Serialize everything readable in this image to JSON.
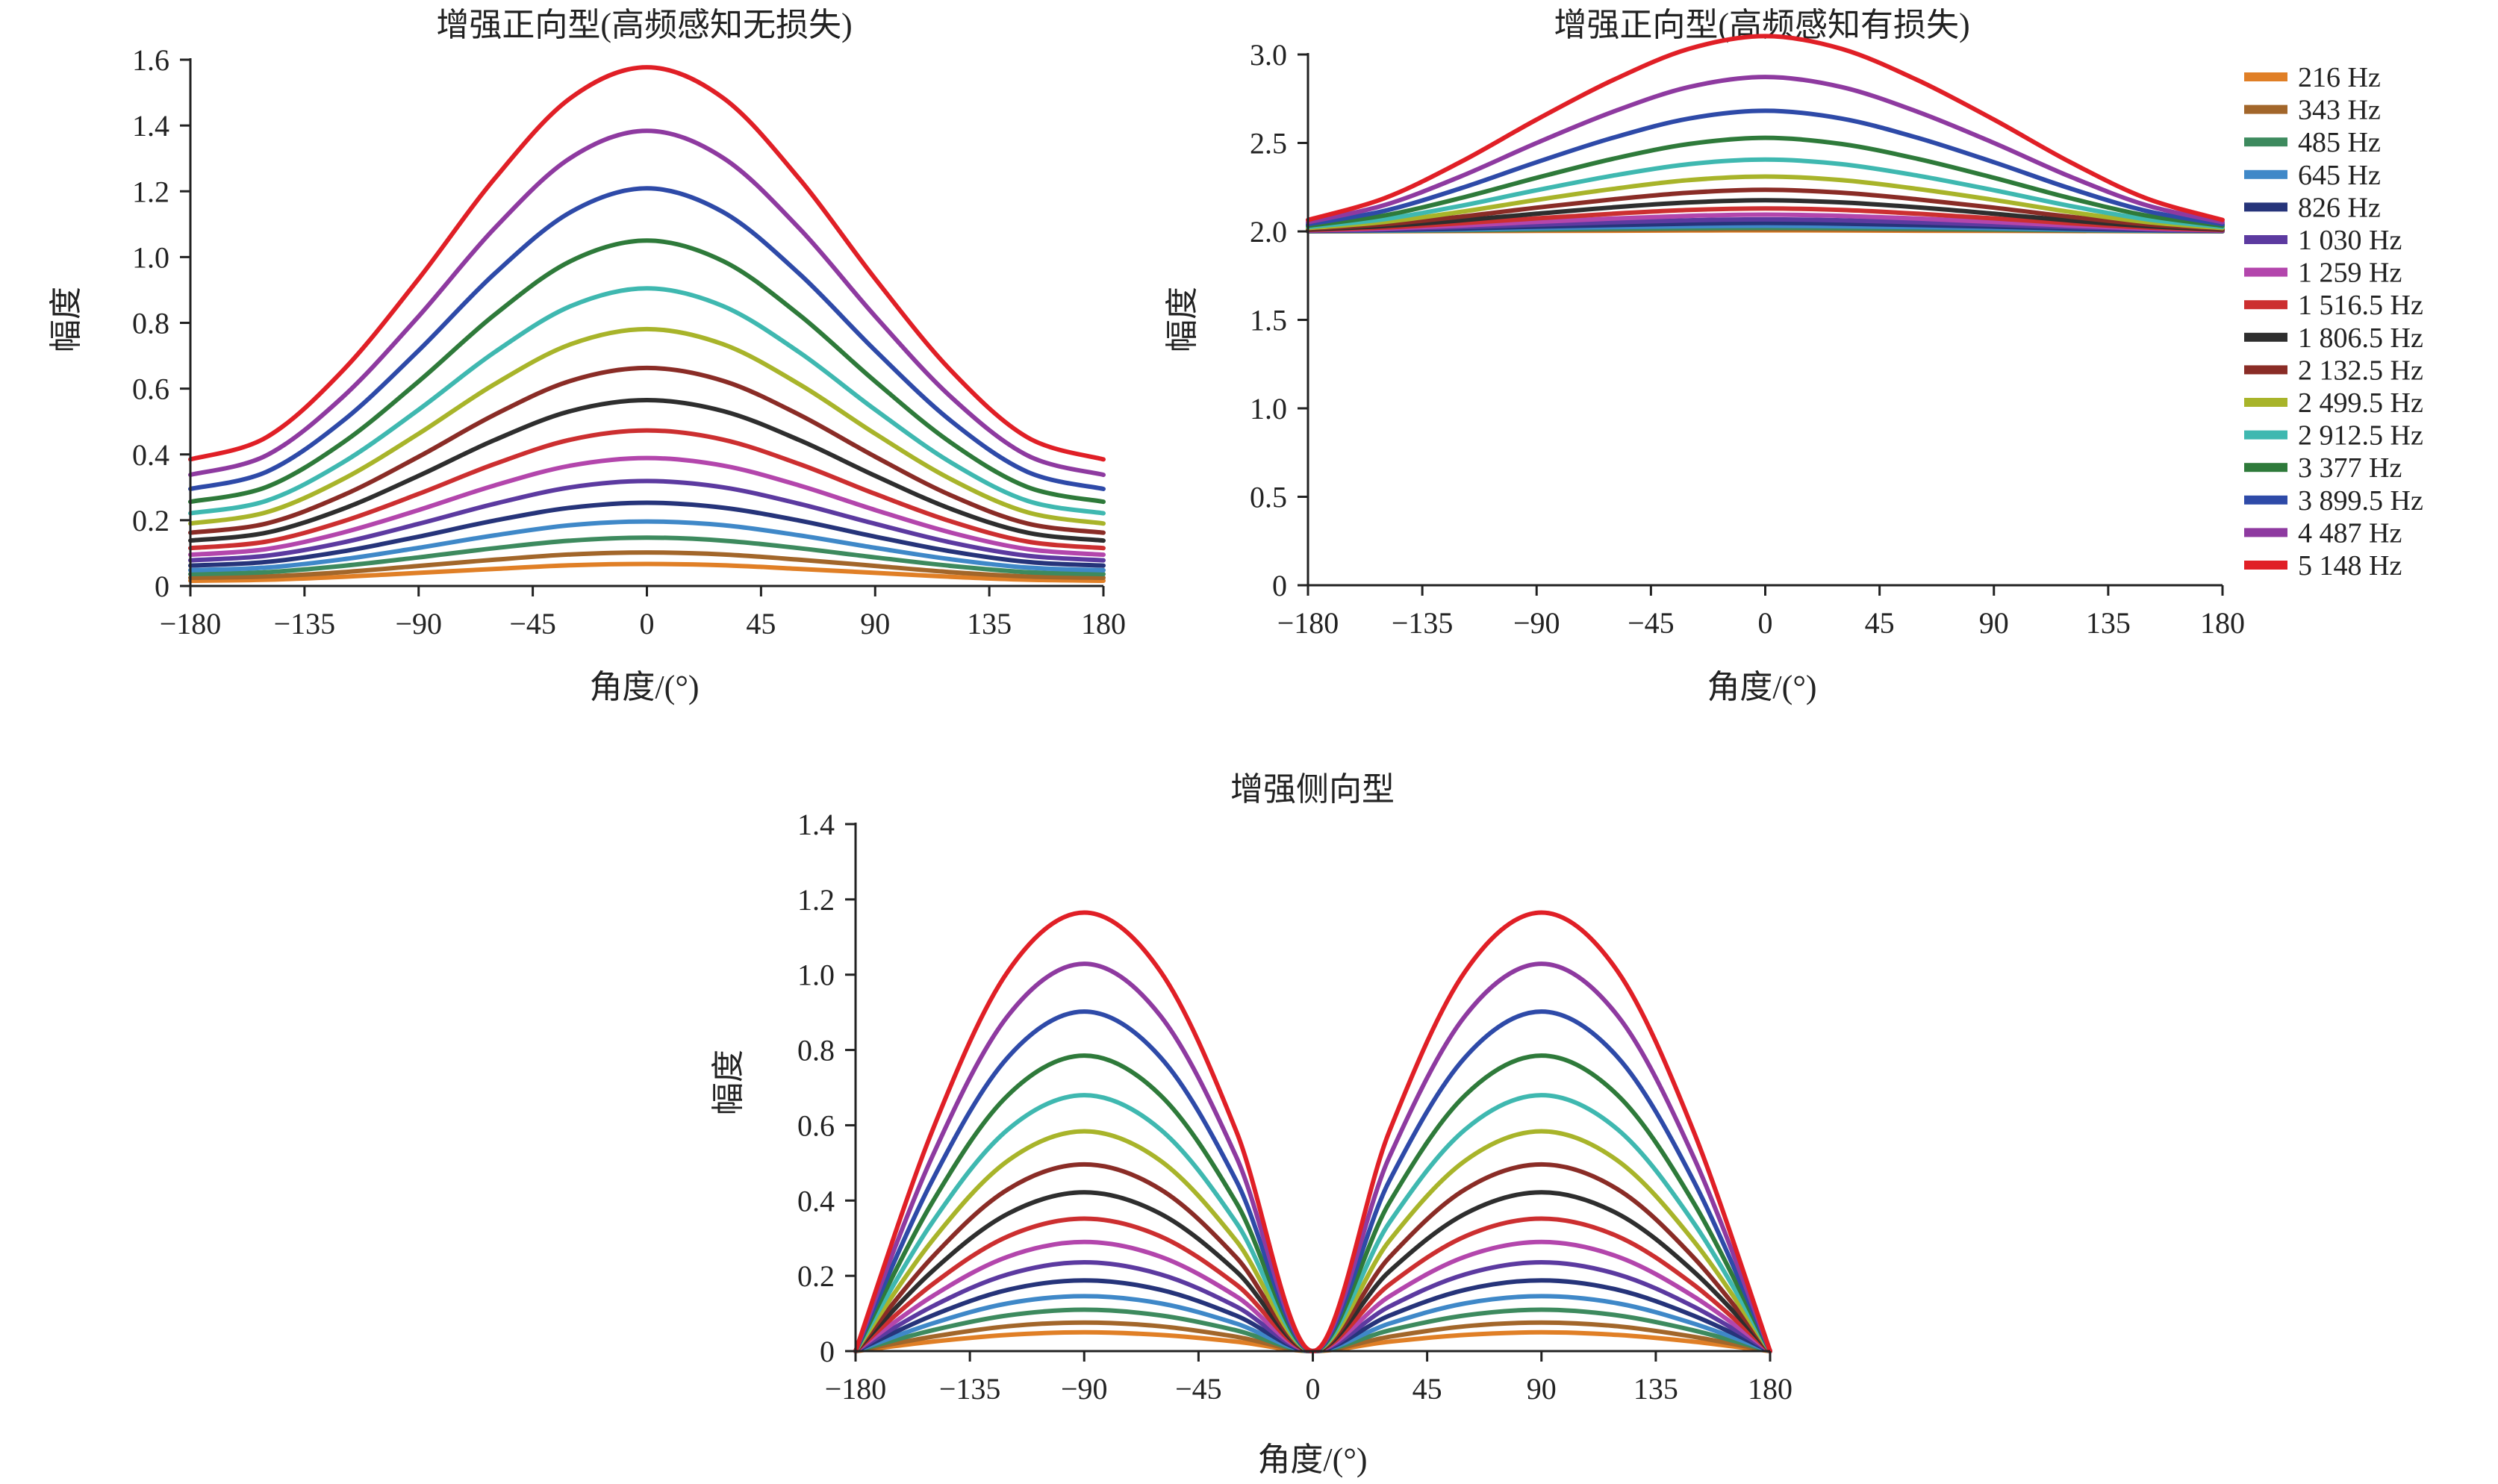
{
  "figure": {
    "legend_labels": [
      "216 Hz",
      "343 Hz",
      "485 Hz",
      "645 Hz",
      "826 Hz",
      "1 030 Hz",
      "1 259 Hz",
      "1 516.5 Hz",
      "1 806.5 Hz",
      "2 132.5 Hz",
      "2 499.5 Hz",
      "2 912.5 Hz",
      "3 377 Hz",
      "3 899.5 Hz",
      "4 487 Hz",
      "5 148 Hz"
    ],
    "series_colors": [
      "#e07f26",
      "#a2662a",
      "#3d8a5e",
      "#3f88c8",
      "#26347a",
      "#5c3aa0",
      "#b346ac",
      "#cc2f30",
      "#2e2e2e",
      "#8a2c26",
      "#a8b42a",
      "#3fb8b0",
      "#2e7a3a",
      "#2e4aa8",
      "#8e3aa0",
      "#e01f26"
    ],
    "legend_position": "right"
  },
  "chart_data": [
    {
      "id": "forward_lossless",
      "type": "line",
      "title": "增强正向型(高频感知无损失)",
      "xlabel": "角度/(°)",
      "ylabel": "幅度",
      "xlim": [
        -180,
        180
      ],
      "ylim": [
        0,
        1.6
      ],
      "xticks": [
        -180,
        -135,
        -90,
        -45,
        0,
        45,
        90,
        135,
        180
      ],
      "xtick_labels": [
        "−180",
        "−135",
        "−90",
        "−45",
        "0",
        "45",
        "90",
        "135",
        "180"
      ],
      "yticks": [
        0,
        0.2,
        0.4,
        0.6,
        0.8,
        1.0,
        1.2,
        1.4,
        1.6
      ],
      "ytick_labels": [
        "0",
        "0.2",
        "0.4",
        "0.6",
        "0.8",
        "1.0",
        "1.2",
        "1.4",
        "1.6"
      ],
      "grid": false,
      "x": [
        -180,
        -150,
        -120,
        -90,
        -60,
        -30,
        0,
        30,
        60,
        90,
        120,
        150,
        180
      ],
      "series": [
        {
          "name": "216 Hz",
          "values": [
            0.016,
            0.019,
            0.028,
            0.04,
            0.052,
            0.063,
            0.067,
            0.063,
            0.052,
            0.04,
            0.028,
            0.019,
            0.016
          ]
        },
        {
          "name": "343 Hz",
          "values": [
            0.025,
            0.029,
            0.042,
            0.061,
            0.08,
            0.096,
            0.102,
            0.096,
            0.08,
            0.061,
            0.042,
            0.029,
            0.025
          ]
        },
        {
          "name": "485 Hz",
          "values": [
            0.036,
            0.042,
            0.061,
            0.087,
            0.115,
            0.138,
            0.147,
            0.138,
            0.115,
            0.087,
            0.061,
            0.042,
            0.036
          ]
        },
        {
          "name": "645 Hz",
          "values": [
            0.048,
            0.056,
            0.081,
            0.116,
            0.154,
            0.185,
            0.196,
            0.185,
            0.154,
            0.116,
            0.081,
            0.056,
            0.048
          ]
        },
        {
          "name": "826 Hz",
          "values": [
            0.062,
            0.073,
            0.105,
            0.15,
            0.199,
            0.238,
            0.253,
            0.238,
            0.199,
            0.15,
            0.105,
            0.073,
            0.062
          ]
        },
        {
          "name": "1 030 Hz",
          "values": [
            0.078,
            0.092,
            0.132,
            0.189,
            0.25,
            0.3,
            0.319,
            0.3,
            0.25,
            0.189,
            0.132,
            0.092,
            0.078
          ]
        },
        {
          "name": "1 259 Hz",
          "values": [
            0.095,
            0.112,
            0.162,
            0.231,
            0.306,
            0.366,
            0.389,
            0.366,
            0.306,
            0.231,
            0.162,
            0.112,
            0.095
          ]
        },
        {
          "name": "1 516.5 Hz",
          "values": [
            0.115,
            0.135,
            0.196,
            0.28,
            0.371,
            0.445,
            0.473,
            0.445,
            0.371,
            0.28,
            0.196,
            0.135,
            0.115
          ]
        },
        {
          "name": "1 806.5 Hz",
          "values": [
            0.138,
            0.162,
            0.234,
            0.335,
            0.444,
            0.532,
            0.565,
            0.532,
            0.444,
            0.335,
            0.234,
            0.162,
            0.138
          ]
        },
        {
          "name": "2 132.5 Hz",
          "values": [
            0.162,
            0.19,
            0.275,
            0.393,
            0.521,
            0.624,
            0.663,
            0.624,
            0.521,
            0.393,
            0.275,
            0.19,
            0.162
          ]
        },
        {
          "name": "2 499.5 Hz",
          "values": [
            0.19,
            0.224,
            0.324,
            0.463,
            0.614,
            0.735,
            0.781,
            0.735,
            0.614,
            0.463,
            0.324,
            0.224,
            0.19
          ]
        },
        {
          "name": "2 912.5 Hz",
          "values": [
            0.221,
            0.259,
            0.375,
            0.536,
            0.711,
            0.851,
            0.905,
            0.851,
            0.711,
            0.536,
            0.375,
            0.259,
            0.221
          ]
        },
        {
          "name": "3 377 Hz",
          "values": [
            0.256,
            0.301,
            0.435,
            0.622,
            0.825,
            0.988,
            1.05,
            0.988,
            0.825,
            0.622,
            0.435,
            0.301,
            0.256
          ]
        },
        {
          "name": "3 899.5 Hz",
          "values": [
            0.295,
            0.347,
            0.501,
            0.716,
            0.95,
            1.137,
            1.209,
            1.137,
            0.95,
            0.716,
            0.501,
            0.347,
            0.295
          ]
        },
        {
          "name": "4 487 Hz",
          "values": [
            0.338,
            0.397,
            0.574,
            0.82,
            1.088,
            1.302,
            1.384,
            1.302,
            1.088,
            0.82,
            0.574,
            0.397,
            0.338
          ]
        },
        {
          "name": "5 148 Hz",
          "values": [
            0.385,
            0.452,
            0.654,
            0.934,
            1.239,
            1.484,
            1.577,
            1.484,
            1.239,
            0.934,
            0.654,
            0.452,
            0.385
          ]
        }
      ]
    },
    {
      "id": "forward_lossy",
      "type": "line",
      "title": "增强正向型(高频感知有损失)",
      "xlabel": "角度/(°)",
      "ylabel": "幅度",
      "xlim": [
        -180,
        180
      ],
      "ylim": [
        0,
        3.0
      ],
      "xticks": [
        -180,
        -135,
        -90,
        -45,
        0,
        45,
        90,
        135,
        180
      ],
      "xtick_labels": [
        "−180",
        "−135",
        "−90",
        "−45",
        "0",
        "45",
        "90",
        "135",
        "180"
      ],
      "yticks": [
        0,
        0.5,
        1.0,
        1.5,
        2.0,
        2.5,
        3.0
      ],
      "ytick_labels": [
        "0",
        "0.5",
        "1.0",
        "1.5",
        "2.0",
        "2.5",
        "3.0"
      ],
      "grid": false,
      "x": [
        -180,
        -150,
        -120,
        -90,
        -60,
        -30,
        0,
        30,
        60,
        90,
        120,
        150,
        180
      ],
      "series": [
        {
          "name": "216 Hz",
          "values": [
            2.0,
            2.001,
            2.002,
            2.003,
            2.004,
            2.005,
            2.006,
            2.005,
            2.004,
            2.003,
            2.002,
            2.001,
            2.0
          ]
        },
        {
          "name": "343 Hz",
          "values": [
            2.001,
            2.002,
            2.004,
            2.007,
            2.009,
            2.011,
            2.012,
            2.011,
            2.009,
            2.007,
            2.004,
            2.002,
            2.001
          ]
        },
        {
          "name": "485 Hz",
          "values": [
            2.001,
            2.003,
            2.007,
            2.011,
            2.015,
            2.018,
            2.02,
            2.018,
            2.015,
            2.011,
            2.007,
            2.003,
            2.001
          ]
        },
        {
          "name": "645 Hz",
          "values": [
            2.002,
            2.005,
            2.011,
            2.018,
            2.024,
            2.029,
            2.032,
            2.029,
            2.024,
            2.018,
            2.011,
            2.005,
            2.002
          ]
        },
        {
          "name": "826 Hz",
          "values": [
            2.003,
            2.008,
            2.016,
            2.027,
            2.036,
            2.044,
            2.048,
            2.044,
            2.036,
            2.027,
            2.016,
            2.008,
            2.003
          ]
        },
        {
          "name": "1 030 Hz",
          "values": [
            2.004,
            2.011,
            2.024,
            2.038,
            2.052,
            2.063,
            2.068,
            2.063,
            2.052,
            2.038,
            2.024,
            2.011,
            2.004
          ]
        },
        {
          "name": "1 259 Hz",
          "values": [
            2.006,
            2.016,
            2.033,
            2.054,
            2.073,
            2.088,
            2.095,
            2.088,
            2.073,
            2.054,
            2.033,
            2.016,
            2.006
          ]
        },
        {
          "name": "1 516.5 Hz",
          "values": [
            2.008,
            2.022,
            2.046,
            2.074,
            2.1,
            2.121,
            2.13,
            2.121,
            2.1,
            2.074,
            2.046,
            2.022,
            2.008
          ]
        },
        {
          "name": "1 806.5 Hz",
          "values": [
            2.011,
            2.03,
            2.062,
            2.1,
            2.136,
            2.164,
            2.176,
            2.164,
            2.136,
            2.1,
            2.062,
            2.03,
            2.011
          ]
        },
        {
          "name": "2 132.5 Hz",
          "values": [
            2.015,
            2.04,
            2.083,
            2.134,
            2.181,
            2.219,
            2.235,
            2.219,
            2.181,
            2.134,
            2.083,
            2.04,
            2.015
          ]
        },
        {
          "name": "2 499.5 Hz",
          "values": [
            2.019,
            2.053,
            2.11,
            2.178,
            2.24,
            2.29,
            2.31,
            2.29,
            2.24,
            2.178,
            2.11,
            2.053,
            2.019
          ]
        },
        {
          "name": "2 912.5 Hz",
          "values": [
            2.025,
            2.069,
            2.144,
            2.233,
            2.315,
            2.38,
            2.406,
            2.38,
            2.315,
            2.233,
            2.144,
            2.069,
            2.025
          ]
        },
        {
          "name": "3 377 Hz",
          "values": [
            2.032,
            2.09,
            2.188,
            2.303,
            2.41,
            2.494,
            2.529,
            2.494,
            2.41,
            2.303,
            2.188,
            2.09,
            2.032
          ]
        },
        {
          "name": "3 899.5 Hz",
          "values": [
            2.041,
            2.116,
            2.243,
            2.391,
            2.529,
            2.638,
            2.682,
            2.638,
            2.529,
            2.391,
            2.243,
            2.116,
            2.041
          ]
        },
        {
          "name": "4 487 Hz",
          "values": [
            2.052,
            2.148,
            2.31,
            2.5,
            2.676,
            2.816,
            2.873,
            2.816,
            2.676,
            2.5,
            2.31,
            2.148,
            2.052
          ]
        },
        {
          "name": "5 148 Hz",
          "values": [
            2.065,
            2.187,
            2.392,
            2.632,
            2.855,
            3.032,
            3.104,
            3.032,
            2.855,
            2.632,
            2.392,
            2.187,
            2.065
          ]
        }
      ]
    },
    {
      "id": "lateral",
      "type": "line",
      "title": "增强侧向型",
      "xlabel": "角度/(°)",
      "ylabel": "幅度",
      "xlim": [
        -180,
        180
      ],
      "ylim": [
        0,
        1.4
      ],
      "xticks": [
        -180,
        -135,
        -90,
        -45,
        0,
        45,
        90,
        135,
        180
      ],
      "xtick_labels": [
        "−180",
        "−135",
        "−90",
        "−45",
        "0",
        "45",
        "90",
        "135",
        "180"
      ],
      "yticks": [
        0,
        0.2,
        0.4,
        0.6,
        0.8,
        1.0,
        1.2,
        1.4
      ],
      "ytick_labels": [
        "0",
        "0.2",
        "0.4",
        "0.6",
        "0.8",
        "1.0",
        "1.2",
        "1.4"
      ],
      "grid": false,
      "x": [
        -180,
        -150,
        -120,
        -90,
        -60,
        -30,
        0,
        30,
        60,
        90,
        120,
        150,
        180
      ],
      "series": [
        {
          "name": "216 Hz",
          "values": [
            0,
            0.025,
            0.043,
            0.05,
            0.043,
            0.025,
            0,
            0.025,
            0.043,
            0.05,
            0.043,
            0.025,
            0
          ]
        },
        {
          "name": "343 Hz",
          "values": [
            0,
            0.038,
            0.066,
            0.076,
            0.066,
            0.038,
            0,
            0.038,
            0.066,
            0.076,
            0.066,
            0.038,
            0
          ]
        },
        {
          "name": "485 Hz",
          "values": [
            0,
            0.055,
            0.095,
            0.11,
            0.095,
            0.055,
            0,
            0.055,
            0.095,
            0.11,
            0.095,
            0.055,
            0
          ]
        },
        {
          "name": "645 Hz",
          "values": [
            0,
            0.073,
            0.127,
            0.146,
            0.127,
            0.073,
            0,
            0.073,
            0.127,
            0.146,
            0.127,
            0.073,
            0
          ]
        },
        {
          "name": "826 Hz",
          "values": [
            0,
            0.094,
            0.163,
            0.188,
            0.163,
            0.094,
            0,
            0.094,
            0.163,
            0.188,
            0.163,
            0.094,
            0
          ]
        },
        {
          "name": "1 030 Hz",
          "values": [
            0,
            0.118,
            0.204,
            0.236,
            0.204,
            0.118,
            0,
            0.118,
            0.204,
            0.236,
            0.204,
            0.118,
            0
          ]
        },
        {
          "name": "1 259 Hz",
          "values": [
            0,
            0.145,
            0.251,
            0.29,
            0.251,
            0.145,
            0,
            0.145,
            0.251,
            0.29,
            0.251,
            0.145,
            0
          ]
        },
        {
          "name": "1 516.5 Hz",
          "values": [
            0,
            0.176,
            0.305,
            0.352,
            0.305,
            0.176,
            0,
            0.176,
            0.305,
            0.352,
            0.305,
            0.176,
            0
          ]
        },
        {
          "name": "1 806.5 Hz",
          "values": [
            0,
            0.211,
            0.365,
            0.422,
            0.365,
            0.211,
            0,
            0.211,
            0.365,
            0.422,
            0.365,
            0.211,
            0
          ]
        },
        {
          "name": "2 132.5 Hz",
          "values": [
            0,
            0.248,
            0.43,
            0.496,
            0.43,
            0.248,
            0,
            0.248,
            0.43,
            0.496,
            0.43,
            0.248,
            0
          ]
        },
        {
          "name": "2 499.5 Hz",
          "values": [
            0,
            0.292,
            0.506,
            0.584,
            0.506,
            0.292,
            0,
            0.292,
            0.506,
            0.584,
            0.506,
            0.292,
            0
          ]
        },
        {
          "name": "2 912.5 Hz",
          "values": [
            0,
            0.34,
            0.589,
            0.68,
            0.589,
            0.34,
            0,
            0.34,
            0.589,
            0.68,
            0.589,
            0.34,
            0
          ]
        },
        {
          "name": "3 377 Hz",
          "values": [
            0,
            0.393,
            0.68,
            0.785,
            0.68,
            0.393,
            0,
            0.393,
            0.68,
            0.785,
            0.68,
            0.393,
            0
          ]
        },
        {
          "name": "3 899.5 Hz",
          "values": [
            0,
            0.451,
            0.781,
            0.902,
            0.781,
            0.451,
            0,
            0.451,
            0.781,
            0.902,
            0.781,
            0.451,
            0
          ]
        },
        {
          "name": "4 487 Hz",
          "values": [
            0,
            0.514,
            0.891,
            1.029,
            0.891,
            0.514,
            0,
            0.514,
            0.891,
            1.029,
            0.891,
            0.514,
            0
          ]
        },
        {
          "name": "5 148 Hz",
          "values": [
            0,
            0.582,
            1.009,
            1.165,
            1.009,
            0.582,
            0,
            0.582,
            1.009,
            1.165,
            1.009,
            0.582,
            0
          ]
        }
      ]
    }
  ]
}
